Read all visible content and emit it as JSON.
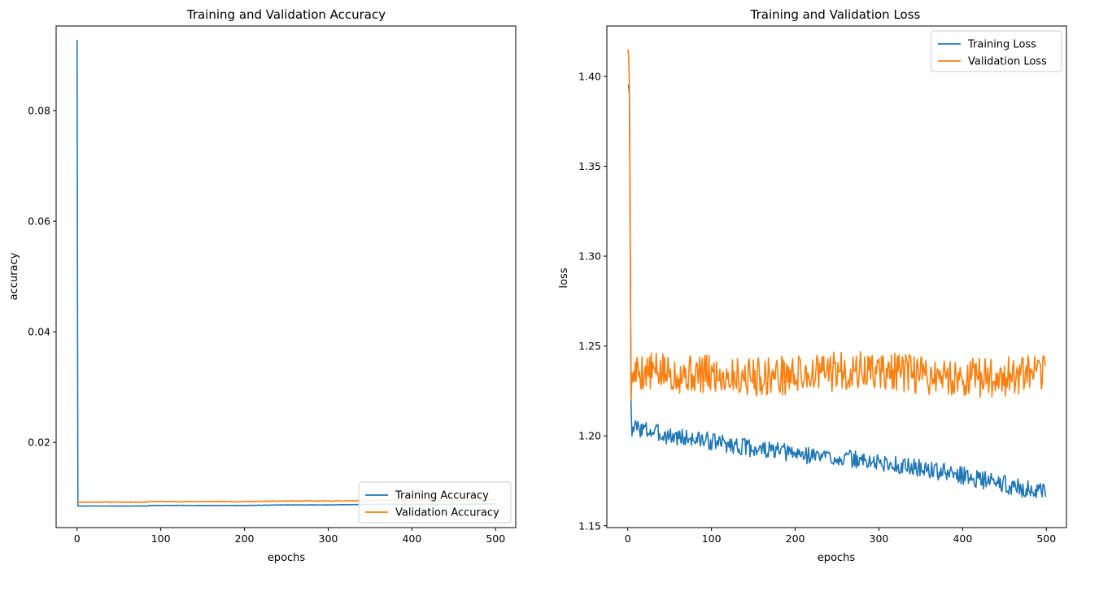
{
  "figure": {
    "left": {
      "title": "Training and Validation Accuracy",
      "xlabel": "epochs",
      "ylabel": "accuracy"
    },
    "right": {
      "title": "Training and Validation Loss",
      "xlabel": "epochs",
      "ylabel": "loss"
    }
  },
  "chart_data": [
    {
      "type": "line",
      "title": "Training and Validation Accuracy",
      "xlabel": "epochs",
      "ylabel": "accuracy",
      "xlim": [
        -25,
        524
      ],
      "ylim": [
        0.0046,
        0.0953
      ],
      "xticks": [
        0,
        100,
        200,
        300,
        400,
        500
      ],
      "yticks": [
        0.02,
        0.04,
        0.06,
        0.08
      ],
      "ytick_labels": [
        "0.02",
        "0.04",
        "0.06",
        "0.08"
      ],
      "legend": "lower-right",
      "grid": false,
      "series": [
        {
          "name": "Training Accuracy",
          "color": "#1f77b4",
          "x": [
            0,
            1,
            2,
            40,
            85,
            86,
            120,
            150,
            200,
            250,
            300,
            350,
            400,
            450,
            499
          ],
          "values": [
            0.0928,
            0.0085,
            0.0085,
            0.0085,
            0.0085,
            0.0086,
            0.0086,
            0.0086,
            0.0086,
            0.0087,
            0.0087,
            0.0088,
            0.0088,
            0.0088,
            0.0089
          ],
          "noise_amp": 3e-05,
          "seed": 7
        },
        {
          "name": "Validation Accuracy",
          "color": "#ff7f0e",
          "x": [
            0,
            1,
            2,
            40,
            85,
            86,
            120,
            160,
            200,
            250,
            300,
            350,
            400,
            450,
            499
          ],
          "values": [
            0.0092,
            0.0092,
            0.0092,
            0.0092,
            0.0092,
            0.0093,
            0.0093,
            0.0093,
            0.0093,
            0.0094,
            0.0094,
            0.0095,
            0.0095,
            0.0095,
            0.0096
          ],
          "noise_amp": 8e-05,
          "seed": 11
        }
      ]
    },
    {
      "type": "line",
      "title": "Training and Validation Loss",
      "xlabel": "epochs",
      "ylabel": "loss",
      "xlim": [
        -25,
        524
      ],
      "ylim": [
        1.149,
        1.428
      ],
      "xticks": [
        0,
        100,
        200,
        300,
        400,
        500
      ],
      "yticks": [
        1.15,
        1.2,
        1.25,
        1.3,
        1.35,
        1.4
      ],
      "ytick_labels": [
        "1.15",
        "1.20",
        "1.25",
        "1.30",
        "1.35",
        "1.40"
      ],
      "legend": "upper-right",
      "grid": false,
      "series": [
        {
          "name": "Training Loss",
          "color": "#1f77b4",
          "x": [
            0,
            1,
            2,
            3,
            4,
            5,
            6,
            50,
            100,
            150,
            200,
            250,
            300,
            350,
            400,
            450,
            499
          ],
          "values": [
            1.395,
            1.395,
            1.39,
            1.3,
            1.215,
            1.2,
            1.205,
            1.2,
            1.197,
            1.193,
            1.19,
            1.188,
            1.185,
            1.182,
            1.178,
            1.173,
            1.168
          ],
          "noise_amp": 0.005,
          "seed": 3
        },
        {
          "name": "Validation Loss",
          "color": "#ff7f0e",
          "x": [
            0,
            1,
            2,
            3,
            4,
            5,
            6,
            7,
            50,
            100,
            150,
            200,
            250,
            300,
            350,
            400,
            450,
            499
          ],
          "values": [
            1.415,
            1.412,
            1.395,
            1.3,
            1.22,
            1.235,
            1.23,
            1.236,
            1.235,
            1.234,
            1.233,
            1.234,
            1.236,
            1.236,
            1.234,
            1.232,
            1.233,
            1.234
          ],
          "noise_amp": 0.011,
          "seed": 5
        }
      ]
    }
  ]
}
